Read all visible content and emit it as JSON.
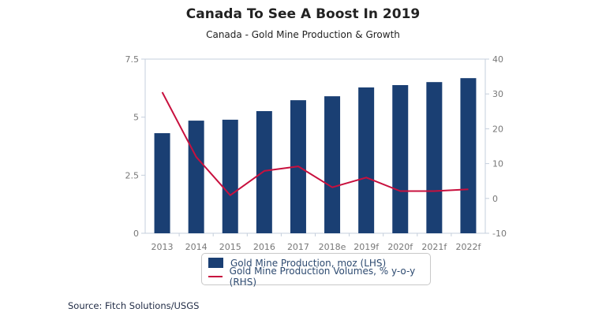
{
  "chart_data": {
    "type": "bar",
    "title": "Canada To See A Boost In 2019",
    "subtitle": "Canada - Gold Mine Production & Growth",
    "categories": [
      "2013",
      "2014",
      "2015",
      "2016",
      "2017",
      "2018e",
      "2019f",
      "2020f",
      "2021f",
      "2022f"
    ],
    "series": [
      {
        "name": "Gold Mine Production, moz (LHS)",
        "type": "bar",
        "axis": "left",
        "color": "#1a3f73",
        "values": [
          4.31,
          4.85,
          4.89,
          5.26,
          5.73,
          5.9,
          6.28,
          6.38,
          6.51,
          6.68
        ]
      },
      {
        "name": "Gold Mine Production Volumes, % y-o-y (RHS)",
        "type": "line",
        "axis": "right",
        "color": "#c8103e",
        "values": [
          30.5,
          11.9,
          0.9,
          7.9,
          9.2,
          3.2,
          6.0,
          2.1,
          2.1,
          2.6
        ]
      }
    ],
    "left_axis": {
      "min": 0,
      "max": 7.5,
      "ticks": [
        0,
        2.5,
        5,
        7.5
      ],
      "tick_labels": [
        "0",
        "2.5",
        "5",
        "7.5"
      ]
    },
    "right_axis": {
      "min": -10,
      "max": 40,
      "ticks": [
        -10,
        0,
        10,
        20,
        30,
        40
      ],
      "tick_labels": [
        "-10",
        "0",
        "10",
        "20",
        "30",
        "40"
      ]
    },
    "xlabel": "",
    "ylabel": "",
    "grid": false,
    "legend_position": "bottom-center",
    "source": "Source: Fitch Solutions/USGS"
  },
  "axis_color": "#c5cfdc"
}
